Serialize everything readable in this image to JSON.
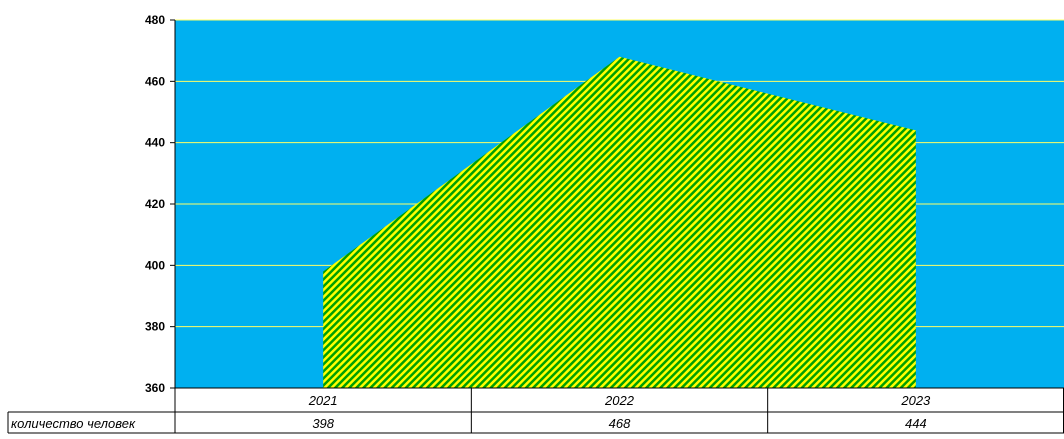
{
  "chart_data": {
    "type": "area",
    "categories": [
      "2021",
      "2022",
      "2023"
    ],
    "series": [
      {
        "name": "количество человек",
        "values": [
          398,
          468,
          444
        ]
      }
    ],
    "ylim": [
      360,
      480
    ],
    "yticks": [
      360,
      380,
      400,
      420,
      440,
      460,
      480
    ],
    "grid": true,
    "data_table": true,
    "colors": {
      "plot_background": "#00B0F0",
      "area_stripe_1": "#FFFF00",
      "area_stripe_2": "#00A000",
      "gridline": "#FFFF66",
      "axis": "#000000"
    }
  }
}
